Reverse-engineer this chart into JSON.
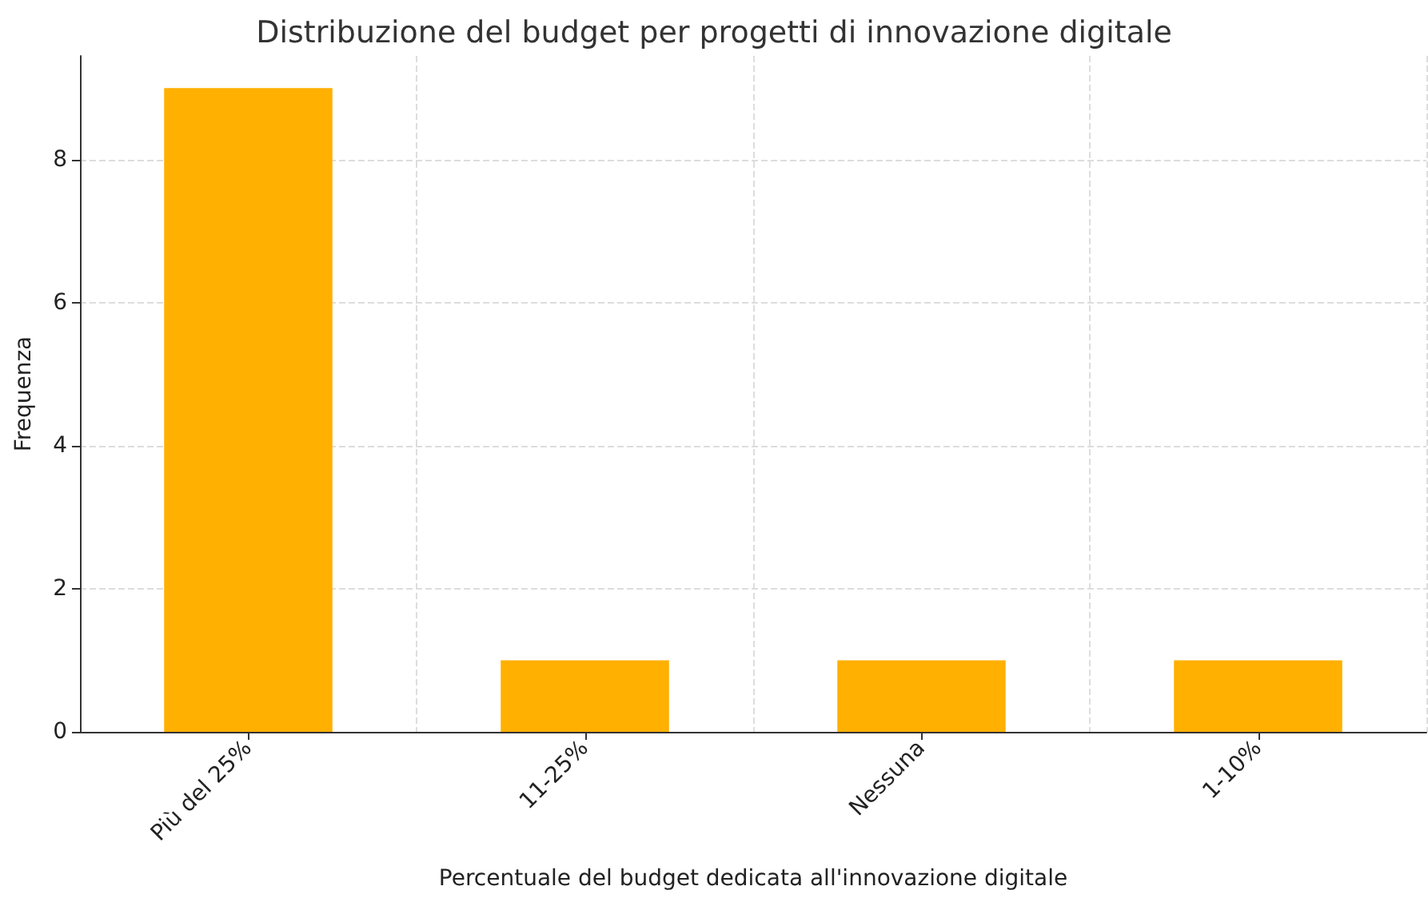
{
  "chart_data": {
    "type": "bar",
    "title": "Distribuzione del budget per progetti di innovazione digitale",
    "xlabel": "Percentuale del budget dedicata all'innovazione digitale",
    "ylabel": "Frequenza",
    "categories": [
      "Più del 25%",
      "11-25%",
      "Nessuna",
      "1-10%"
    ],
    "values": [
      9,
      1,
      1,
      1
    ],
    "color": "#ffb000",
    "ylim": [
      0,
      9.45
    ],
    "yticks": [
      0,
      2,
      4,
      6,
      8
    ],
    "grid": true
  }
}
